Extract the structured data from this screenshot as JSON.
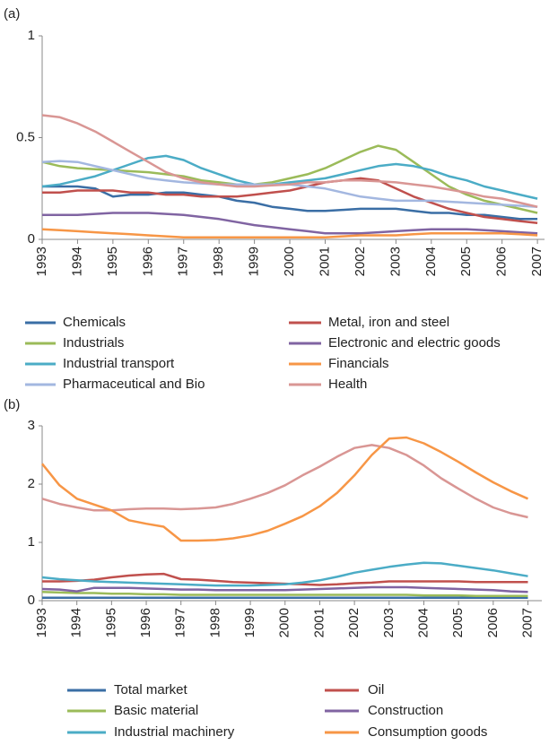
{
  "chart_data": [
    {
      "type": "line",
      "title": "(a)",
      "x": [
        1993,
        1993.5,
        1994,
        1994.5,
        1995,
        1995.5,
        1996,
        1996.5,
        1997,
        1997.5,
        1998,
        1998.5,
        1999,
        1999.5,
        2000,
        2000.5,
        2001,
        2001.5,
        2002,
        2002.5,
        2003,
        2003.5,
        2004,
        2004.5,
        2005,
        2005.5,
        2006,
        2006.5,
        2007
      ],
      "xlim": [
        1993,
        2007.2
      ],
      "xticks": [
        1993,
        1994,
        1995,
        1996,
        1997,
        1998,
        1999,
        2000,
        2001,
        2002,
        2003,
        2004,
        2005,
        2006,
        2007
      ],
      "ylim": [
        0,
        1
      ],
      "yticks": [
        0,
        0.5,
        1
      ],
      "grid": false,
      "series": [
        {
          "name": "Chemicals",
          "color": "#3a6ea5",
          "values": [
            0.26,
            0.26,
            0.26,
            0.25,
            0.21,
            0.22,
            0.22,
            0.23,
            0.23,
            0.22,
            0.21,
            0.19,
            0.18,
            0.16,
            0.15,
            0.14,
            0.14,
            0.145,
            0.15,
            0.15,
            0.15,
            0.14,
            0.13,
            0.13,
            0.12,
            0.12,
            0.11,
            0.1,
            0.1
          ]
        },
        {
          "name": "Metal, iron and steel",
          "color": "#c0504d",
          "values": [
            0.23,
            0.23,
            0.24,
            0.24,
            0.24,
            0.23,
            0.23,
            0.22,
            0.22,
            0.21,
            0.21,
            0.21,
            0.22,
            0.23,
            0.24,
            0.26,
            0.28,
            0.29,
            0.3,
            0.29,
            0.25,
            0.21,
            0.18,
            0.15,
            0.13,
            0.11,
            0.1,
            0.09,
            0.08
          ]
        },
        {
          "name": "Industrials",
          "color": "#9bbb59",
          "values": [
            0.38,
            0.36,
            0.35,
            0.345,
            0.34,
            0.335,
            0.33,
            0.32,
            0.31,
            0.29,
            0.28,
            0.27,
            0.27,
            0.28,
            0.3,
            0.32,
            0.35,
            0.39,
            0.43,
            0.46,
            0.44,
            0.38,
            0.32,
            0.26,
            0.22,
            0.19,
            0.17,
            0.15,
            0.13
          ]
        },
        {
          "name": "Electronic and electric goods",
          "color": "#8064a2",
          "values": [
            0.12,
            0.12,
            0.12,
            0.125,
            0.13,
            0.13,
            0.13,
            0.125,
            0.12,
            0.11,
            0.1,
            0.085,
            0.07,
            0.06,
            0.05,
            0.04,
            0.03,
            0.03,
            0.03,
            0.035,
            0.04,
            0.045,
            0.05,
            0.05,
            0.05,
            0.045,
            0.04,
            0.035,
            0.03
          ]
        },
        {
          "name": "Industrial transport",
          "color": "#4bacc6",
          "values": [
            0.26,
            0.27,
            0.29,
            0.31,
            0.34,
            0.37,
            0.4,
            0.41,
            0.39,
            0.35,
            0.32,
            0.29,
            0.27,
            0.27,
            0.28,
            0.29,
            0.3,
            0.32,
            0.34,
            0.36,
            0.37,
            0.36,
            0.34,
            0.31,
            0.29,
            0.26,
            0.24,
            0.22,
            0.2
          ]
        },
        {
          "name": "Financials",
          "color": "#f79646",
          "values": [
            0.05,
            0.045,
            0.04,
            0.035,
            0.03,
            0.025,
            0.02,
            0.015,
            0.01,
            0.01,
            0.01,
            0.01,
            0.01,
            0.01,
            0.01,
            0.01,
            0.01,
            0.015,
            0.02,
            0.02,
            0.02,
            0.025,
            0.03,
            0.03,
            0.03,
            0.03,
            0.03,
            0.025,
            0.02
          ]
        },
        {
          "name": "Pharmaceutical and Bio",
          "color": "#a3b7e0",
          "values": [
            0.38,
            0.385,
            0.38,
            0.36,
            0.34,
            0.32,
            0.3,
            0.29,
            0.28,
            0.275,
            0.27,
            0.27,
            0.27,
            0.27,
            0.27,
            0.26,
            0.25,
            0.23,
            0.21,
            0.2,
            0.19,
            0.19,
            0.19,
            0.185,
            0.18,
            0.175,
            0.17,
            0.165,
            0.16
          ]
        },
        {
          "name": "Health",
          "color": "#d99694",
          "values": [
            0.61,
            0.6,
            0.57,
            0.53,
            0.48,
            0.43,
            0.38,
            0.33,
            0.3,
            0.28,
            0.27,
            0.26,
            0.26,
            0.265,
            0.27,
            0.28,
            0.28,
            0.29,
            0.29,
            0.285,
            0.28,
            0.27,
            0.26,
            0.245,
            0.23,
            0.21,
            0.2,
            0.18,
            0.16
          ]
        }
      ]
    },
    {
      "type": "line",
      "title": "(b)",
      "x": [
        1993,
        1993.5,
        1994,
        1994.5,
        1995,
        1995.5,
        1996,
        1996.5,
        1997,
        1997.5,
        1998,
        1998.5,
        1999,
        1999.5,
        2000,
        2000.5,
        2001,
        2001.5,
        2002,
        2002.5,
        2003,
        2003.5,
        2004,
        2004.5,
        2005,
        2005.5,
        2006,
        2006.5,
        2007
      ],
      "xlim": [
        1993,
        2007.4
      ],
      "xticks": [
        1993,
        1994,
        1995,
        1996,
        1997,
        1998,
        1999,
        2000,
        2001,
        2002,
        2003,
        2004,
        2005,
        2006,
        2007
      ],
      "ylim": [
        0,
        3
      ],
      "yticks": [
        0,
        1,
        2,
        3
      ],
      "grid": false,
      "series": [
        {
          "color": "#d99694",
          "values": [
            1.75,
            1.66,
            1.6,
            1.55,
            1.55,
            1.57,
            1.58,
            1.58,
            1.57,
            1.58,
            1.6,
            1.66,
            1.75,
            1.85,
            1.98,
            2.15,
            2.3,
            2.47,
            2.62,
            2.67,
            2.62,
            2.5,
            2.32,
            2.1,
            1.92,
            1.75,
            1.6,
            1.5,
            1.43
          ]
        },
        {
          "name": "Total market",
          "color": "#3a6ea5",
          "values": [
            0.05,
            0.05,
            0.05,
            0.05,
            0.05,
            0.05,
            0.05,
            0.05,
            0.05,
            0.05,
            0.05,
            0.05,
            0.05,
            0.05,
            0.05,
            0.05,
            0.05,
            0.05,
            0.05,
            0.05,
            0.05,
            0.05,
            0.05,
            0.05,
            0.05,
            0.05,
            0.05,
            0.05,
            0.05
          ]
        },
        {
          "name": "Oil",
          "color": "#c0504d",
          "values": [
            0.33,
            0.33,
            0.34,
            0.36,
            0.4,
            0.43,
            0.45,
            0.46,
            0.37,
            0.36,
            0.34,
            0.32,
            0.31,
            0.3,
            0.29,
            0.28,
            0.27,
            0.28,
            0.3,
            0.31,
            0.33,
            0.33,
            0.33,
            0.33,
            0.33,
            0.32,
            0.32,
            0.32,
            0.32
          ]
        },
        {
          "name": "Basic material",
          "color": "#9bbb59",
          "values": [
            0.15,
            0.14,
            0.13,
            0.13,
            0.12,
            0.12,
            0.11,
            0.11,
            0.1,
            0.1,
            0.1,
            0.1,
            0.1,
            0.1,
            0.1,
            0.1,
            0.1,
            0.1,
            0.1,
            0.1,
            0.1,
            0.1,
            0.09,
            0.09,
            0.09,
            0.08,
            0.08,
            0.08,
            0.08
          ]
        },
        {
          "name": "Construction",
          "color": "#8064a2",
          "values": [
            0.2,
            0.19,
            0.16,
            0.22,
            0.22,
            0.22,
            0.21,
            0.2,
            0.19,
            0.19,
            0.18,
            0.18,
            0.18,
            0.18,
            0.18,
            0.19,
            0.2,
            0.21,
            0.22,
            0.23,
            0.23,
            0.23,
            0.22,
            0.21,
            0.2,
            0.19,
            0.18,
            0.16,
            0.15
          ]
        },
        {
          "name": "Industrial machinery",
          "color": "#4bacc6",
          "values": [
            0.4,
            0.37,
            0.35,
            0.33,
            0.32,
            0.31,
            0.3,
            0.29,
            0.28,
            0.27,
            0.26,
            0.26,
            0.26,
            0.27,
            0.28,
            0.31,
            0.35,
            0.41,
            0.48,
            0.53,
            0.58,
            0.62,
            0.65,
            0.64,
            0.6,
            0.56,
            0.52,
            0.47,
            0.42
          ]
        },
        {
          "name": "Consumption goods",
          "color": "#f79646",
          "values": [
            2.35,
            1.98,
            1.75,
            1.65,
            1.55,
            1.38,
            1.32,
            1.27,
            1.03,
            1.03,
            1.04,
            1.07,
            1.12,
            1.2,
            1.32,
            1.45,
            1.62,
            1.85,
            2.15,
            2.5,
            2.78,
            2.8,
            2.7,
            2.55,
            2.38,
            2.2,
            2.03,
            1.88,
            1.75
          ]
        }
      ]
    }
  ]
}
